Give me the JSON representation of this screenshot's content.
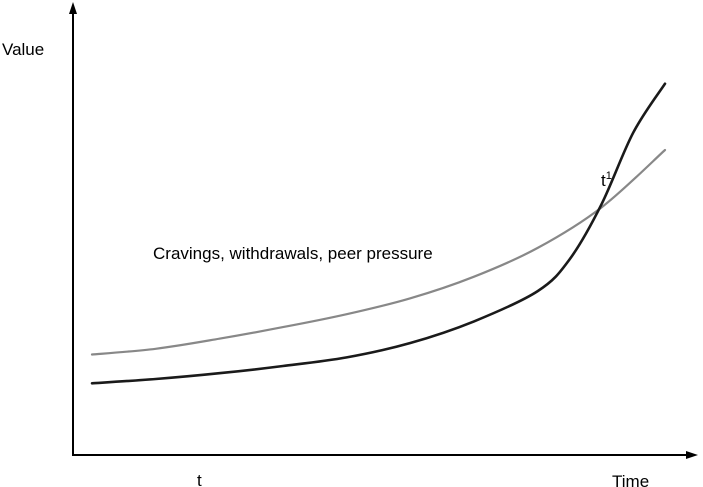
{
  "chart_data": {
    "type": "line",
    "title": "",
    "ylabel": "Value",
    "xlabel": "Time",
    "x_ticks": [
      {
        "x": 1,
        "label": "t"
      }
    ],
    "annotations": [
      {
        "text": "Cravings, withdrawals, peer pressure"
      },
      {
        "base": "t",
        "superscript": "1"
      }
    ],
    "xlim": [
      0,
      10
    ],
    "ylim": [
      0,
      10
    ],
    "grid": false,
    "series": [
      {
        "color": "#888888",
        "points": [
          [
            0,
            2.1
          ],
          [
            1,
            2.3
          ],
          [
            2,
            2.65
          ],
          [
            3,
            3.05
          ],
          [
            4,
            3.5
          ],
          [
            5,
            4.05
          ],
          [
            6,
            4.8
          ],
          [
            7,
            5.8
          ],
          [
            8,
            7.2
          ],
          [
            9,
            9.2
          ]
        ]
      },
      {
        "color": "#1a1a1a",
        "points": [
          [
            0,
            1.1
          ],
          [
            1,
            1.25
          ],
          [
            2,
            1.45
          ],
          [
            3,
            1.7
          ],
          [
            4,
            2.0
          ],
          [
            5,
            2.5
          ],
          [
            6,
            3.25
          ],
          [
            7,
            4.3
          ],
          [
            7.5,
            5.4
          ],
          [
            8,
            7.3
          ],
          [
            8.5,
            9.8
          ],
          [
            9,
            11.5
          ]
        ]
      }
    ]
  }
}
